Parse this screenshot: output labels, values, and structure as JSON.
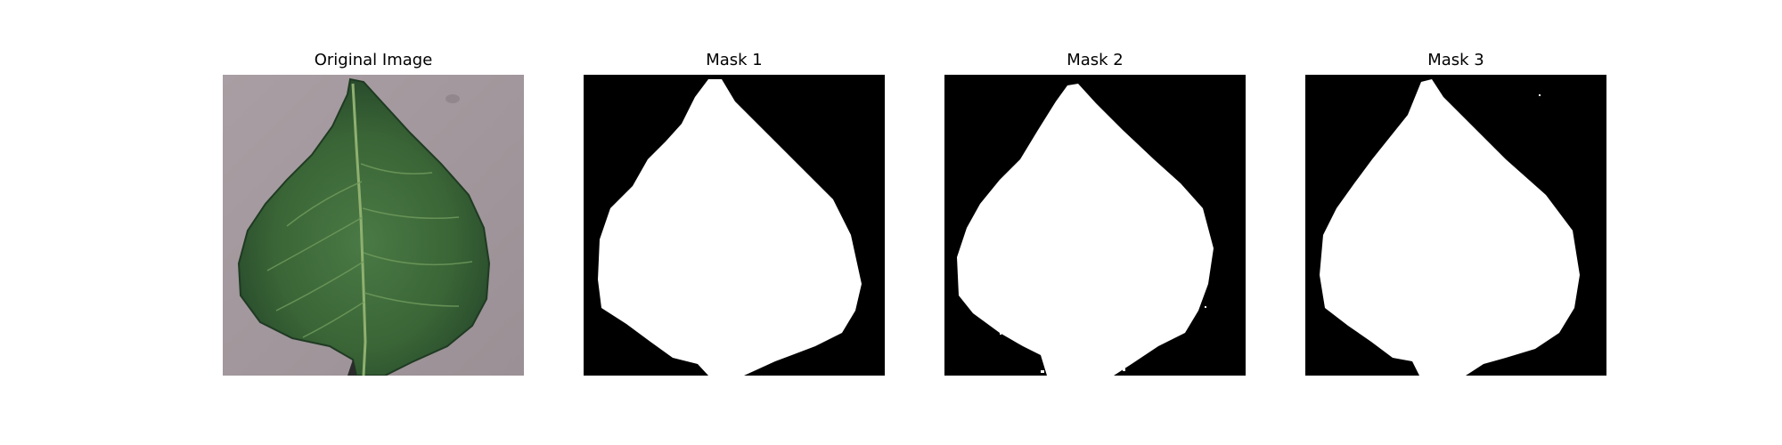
{
  "panels": [
    {
      "title": "Original Image"
    },
    {
      "title": "Mask 1"
    },
    {
      "title": "Mask 2"
    },
    {
      "title": "Mask 3"
    }
  ],
  "colors": {
    "background": "#ffffff",
    "mask_background": "#000000",
    "mask_foreground": "#ffffff",
    "leaf_green": "#3f6b3b",
    "surface_gray": "#a39a9e"
  }
}
